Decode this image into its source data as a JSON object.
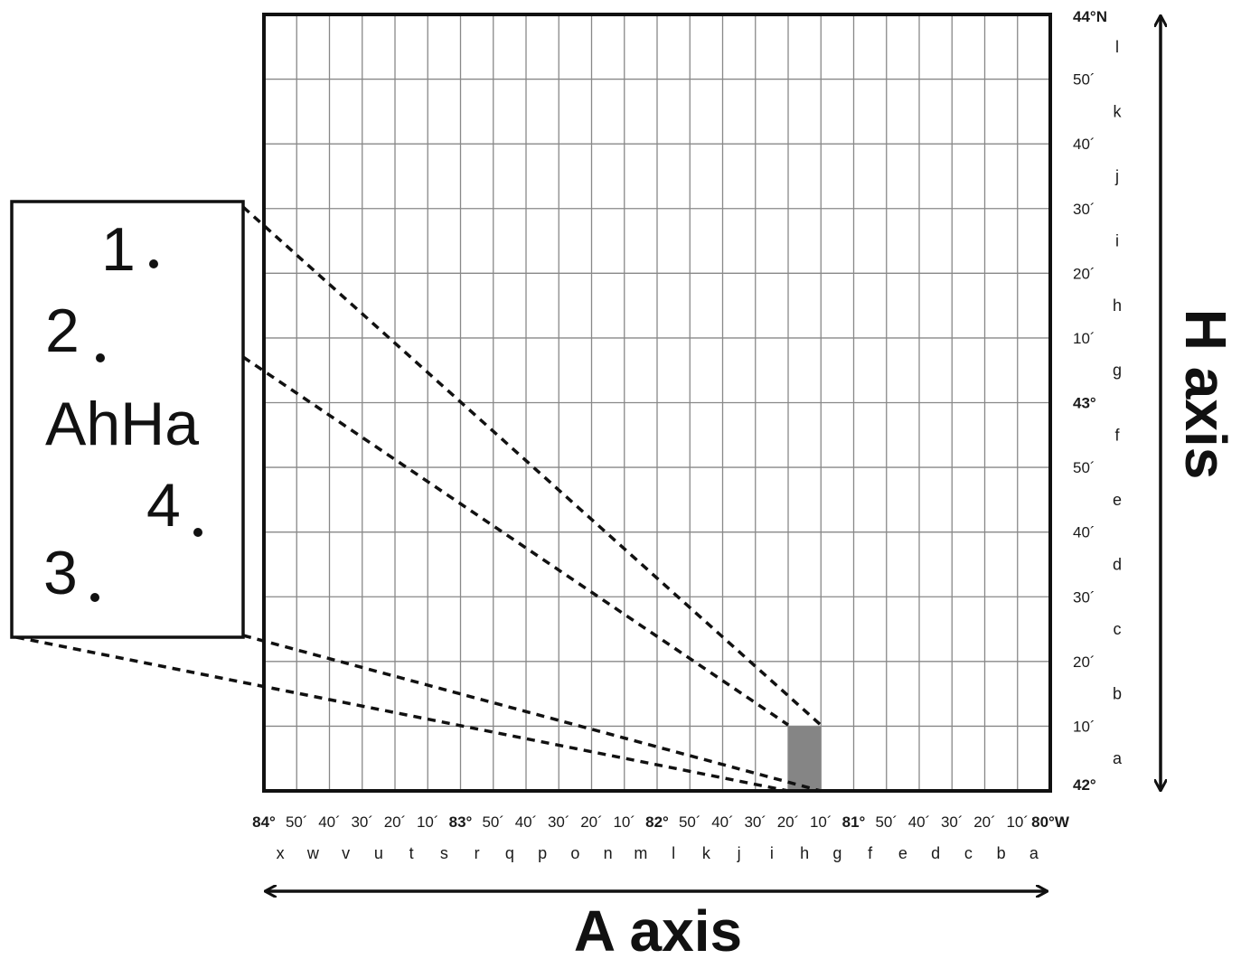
{
  "grid": {
    "columns": 24,
    "rows": 12,
    "highlighted_cell": {
      "column_letter": "h",
      "row_letter": "a"
    },
    "highlight_color": "#858585",
    "line_color": "#888888",
    "border_color": "#111111"
  },
  "x_axis": {
    "tick_labels": [
      {
        "text": "84°",
        "major": true
      },
      {
        "text": "50´",
        "major": false
      },
      {
        "text": "40´",
        "major": false
      },
      {
        "text": "30´",
        "major": false
      },
      {
        "text": "20´",
        "major": false
      },
      {
        "text": "10´",
        "major": false
      },
      {
        "text": "83°",
        "major": true
      },
      {
        "text": "50´",
        "major": false
      },
      {
        "text": "40´",
        "major": false
      },
      {
        "text": "30´",
        "major": false
      },
      {
        "text": "20´",
        "major": false
      },
      {
        "text": "10´",
        "major": false
      },
      {
        "text": "82°",
        "major": true
      },
      {
        "text": "50´",
        "major": false
      },
      {
        "text": "40´",
        "major": false
      },
      {
        "text": "30´",
        "major": false
      },
      {
        "text": "20´",
        "major": false
      },
      {
        "text": "10´",
        "major": false
      },
      {
        "text": "81°",
        "major": true
      },
      {
        "text": "50´",
        "major": false
      },
      {
        "text": "40´",
        "major": false
      },
      {
        "text": "30´",
        "major": false
      },
      {
        "text": "20´",
        "major": false
      },
      {
        "text": "10´",
        "major": false
      },
      {
        "text": "80°W",
        "major": true
      }
    ],
    "cell_letters": [
      "x",
      "w",
      "v",
      "u",
      "t",
      "s",
      "r",
      "q",
      "p",
      "o",
      "n",
      "m",
      "l",
      "k",
      "j",
      "i",
      "h",
      "g",
      "f",
      "e",
      "d",
      "c",
      "b",
      "a"
    ],
    "title": "A axis"
  },
  "y_axis": {
    "tick_labels": [
      {
        "text": "44°N",
        "major": true
      },
      {
        "text": "50´",
        "major": false
      },
      {
        "text": "40´",
        "major": false
      },
      {
        "text": "30´",
        "major": false
      },
      {
        "text": "20´",
        "major": false
      },
      {
        "text": "10´",
        "major": false
      },
      {
        "text": "43°",
        "major": true
      },
      {
        "text": "50´",
        "major": false
      },
      {
        "text": "40´",
        "major": false
      },
      {
        "text": "30´",
        "major": false
      },
      {
        "text": "20´",
        "major": false
      },
      {
        "text": "10´",
        "major": false
      },
      {
        "text": "42°",
        "major": true
      }
    ],
    "cell_letters": [
      "l",
      "k",
      "j",
      "i",
      "h",
      "g",
      "f",
      "e",
      "d",
      "c",
      "b",
      "a"
    ],
    "title": "H axis"
  },
  "inset": {
    "labels": {
      "one": "1",
      "two": "2",
      "code": "AhHa",
      "four": "4",
      "three": "3"
    }
  }
}
